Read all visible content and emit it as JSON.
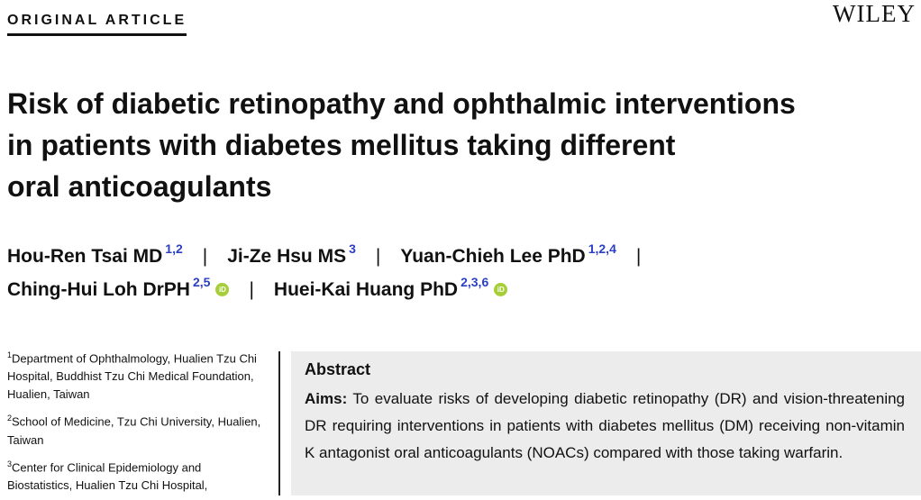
{
  "header": {
    "article_type": "ORIGINAL ARTICLE",
    "publisher": "WILEY"
  },
  "title": {
    "lines": [
      "Risk of diabetic retinopathy and ophthalmic interventions",
      "in patients with diabetes mellitus taking different",
      "oral anticoagulants"
    ]
  },
  "authors": [
    {
      "name": "Hou-Ren Tsai MD",
      "affiliations": "1,2",
      "orcid": false
    },
    {
      "name": "Ji-Ze Hsu MS",
      "affiliations": "3",
      "orcid": false
    },
    {
      "name": "Yuan-Chieh Lee PhD",
      "affiliations": "1,2,4",
      "orcid": false
    },
    {
      "name": "Ching-Hui Loh DrPH",
      "affiliations": "2,5",
      "orcid": true
    },
    {
      "name": "Huei-Kai Huang PhD",
      "affiliations": "2,3,6",
      "orcid": true
    }
  ],
  "separator": "|",
  "orcid_label": "iD",
  "affiliations": [
    {
      "number": "1",
      "text": "Department of Ophthalmology, Hualien Tzu Chi Hospital, Buddhist Tzu Chi Medical Foundation, Hualien, Taiwan"
    },
    {
      "number": "2",
      "text": "School of Medicine, Tzu Chi University, Hualien, Taiwan"
    },
    {
      "number": "3",
      "text": "Center for Clinical Epidemiology and Biostatistics, Hualien Tzu Chi Hospital,"
    }
  ],
  "abstract": {
    "heading": "Abstract",
    "aims_label": "Aims:",
    "aims_text": " To evaluate risks of developing diabetic retinopathy (DR) and vision-threatening DR requiring interventions in patients with diabetes mellitus (DM) receiving non-vitamin K antagonist oral anticoagulants (NOACs) compared with those taking warfarin."
  }
}
